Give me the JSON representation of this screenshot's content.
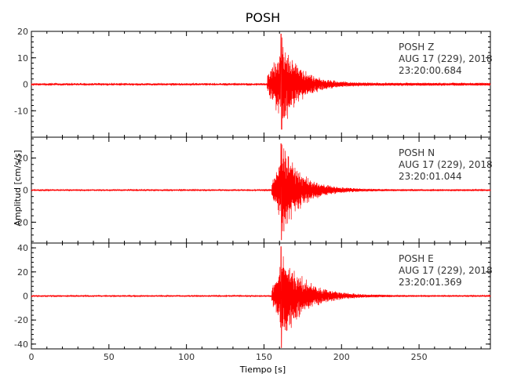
{
  "chart_data": {
    "type": "line",
    "title": "POSH",
    "xlabel": "Tiempo [s]",
    "ylabel": "Amplitud [cm/s/s]",
    "xlim": [
      0,
      296
    ],
    "xticks": [
      0,
      50,
      100,
      150,
      200,
      250
    ],
    "trace_color": "#ff0000",
    "axis_color": "#000000",
    "text_color": "#333333",
    "panels": [
      {
        "component": "Z",
        "label_lines": [
          "POSH   Z",
          "AUG 17 (229), 2018",
          "23:20:00.684"
        ],
        "ylim": [
          -20,
          20
        ],
        "yticks": [
          20,
          10,
          0,
          -10
        ],
        "peak_positive": 19,
        "peak_negative": -17,
        "pre_event_noise": 0.6,
        "onset_s": 152,
        "peak_time_s": 161,
        "decay_s": 18
      },
      {
        "component": "N",
        "label_lines": [
          "POSH   N",
          "AUG 17 (229), 2018",
          "23:20:01.044"
        ],
        "ylim": [
          -33,
          33
        ],
        "yticks": [
          20,
          0,
          -20
        ],
        "peak_positive": 29,
        "peak_negative": -31,
        "pre_event_noise": 0.6,
        "onset_s": 155,
        "peak_time_s": 161,
        "decay_s": 20
      },
      {
        "component": "E",
        "label_lines": [
          "POSH   E",
          "AUG 17 (229), 2018",
          "23:20:01.369"
        ],
        "ylim": [
          -44,
          44
        ],
        "yticks": [
          40,
          20,
          0,
          -20,
          -40
        ],
        "peak_positive": 41,
        "peak_negative": -43,
        "pre_event_noise": 0.7,
        "onset_s": 155,
        "peak_time_s": 161,
        "decay_s": 22
      }
    ]
  }
}
